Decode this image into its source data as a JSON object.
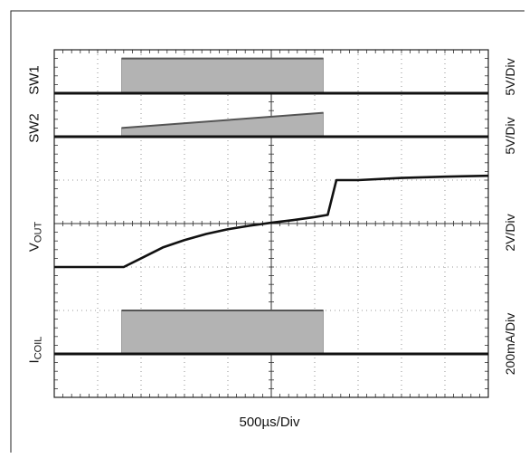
{
  "chart_data": {
    "type": "line",
    "title": "",
    "xlabel": "500µs/Div",
    "x_divisions": 10,
    "y_divisions": 8,
    "grid": true,
    "x_unit": "div",
    "channels": [
      {
        "name_main": "SW1",
        "name_sub": "",
        "scale": "5V/Div",
        "kind": "switching",
        "baseline_div": 7.0,
        "envelope": {
          "x": [
            1.55,
            6.2
          ],
          "top_div": [
            7.8,
            7.8
          ]
        }
      },
      {
        "name_main": "SW2",
        "name_sub": "",
        "scale": "5V/Div",
        "kind": "switching",
        "baseline_div": 6.0,
        "envelope": {
          "x": [
            1.55,
            6.2
          ],
          "top_div": [
            6.2,
            6.55
          ]
        }
      },
      {
        "name_main": "V",
        "name_sub": "OUT",
        "scale": "2V/Div",
        "kind": "trace",
        "x": [
          0,
          1.6,
          2.0,
          2.5,
          3.0,
          3.5,
          4.0,
          4.5,
          5.0,
          5.5,
          6.0,
          6.3,
          6.5,
          7.0,
          8.0,
          9.0,
          10.0
        ],
        "y_div": [
          3.0,
          3.0,
          3.2,
          3.45,
          3.62,
          3.76,
          3.87,
          3.95,
          4.02,
          4.08,
          4.15,
          4.2,
          5.0,
          5.0,
          5.05,
          5.08,
          5.1
        ]
      },
      {
        "name_main": "I",
        "name_sub": "COIL",
        "scale": "200mA/Div",
        "kind": "switching",
        "baseline_div": 1.0,
        "envelope": {
          "x": [
            1.55,
            6.2
          ],
          "top_div": [
            2.0,
            2.0
          ]
        }
      }
    ]
  }
}
